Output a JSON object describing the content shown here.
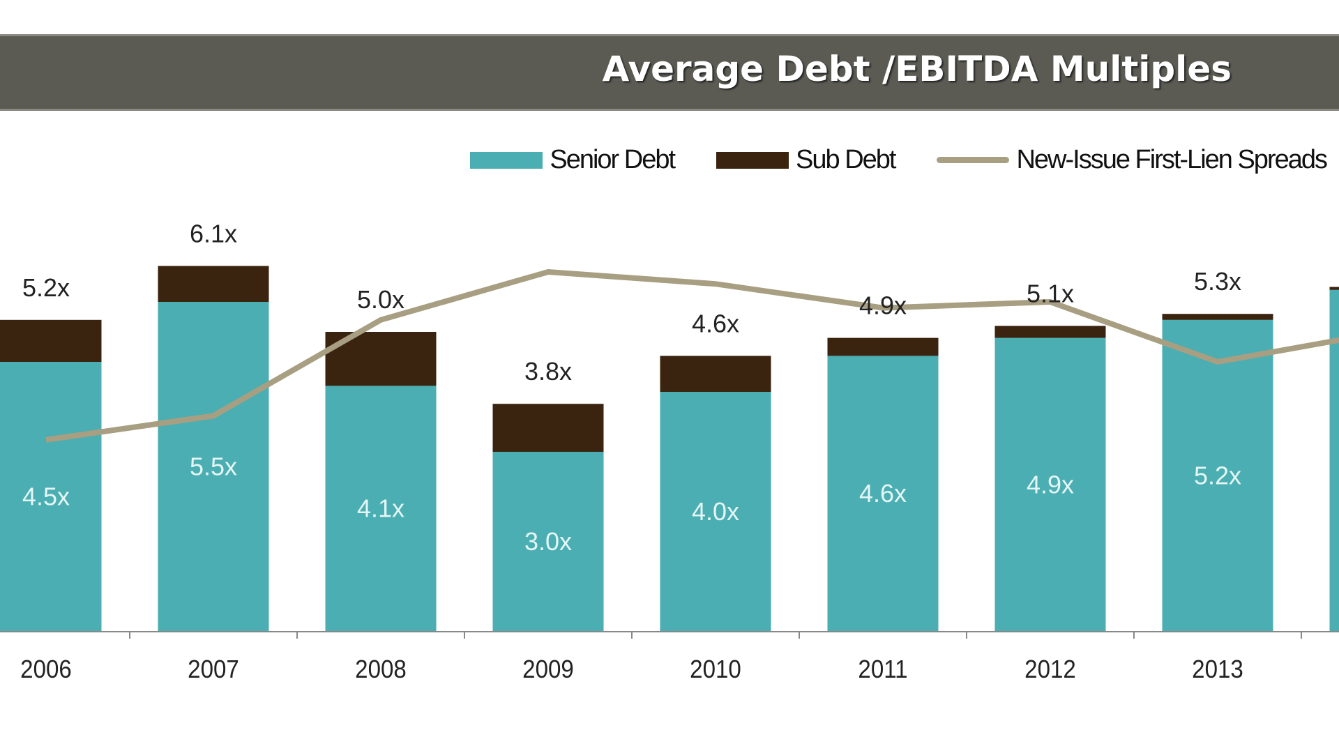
{
  "chart_data": {
    "type": "bar",
    "stacked": true,
    "title": "Average Debt /EBITDA Multiples",
    "xlabel": "",
    "ylabel": "",
    "grid": false,
    "legend_position": "top-right",
    "categories": [
      "2006",
      "2007",
      "2008",
      "2009",
      "2010",
      "2011",
      "2012",
      "2013",
      ""
    ],
    "series": [
      {
        "name": "Senior Debt",
        "type": "bar",
        "color": "#4aaeb2",
        "values": [
          4.5,
          5.5,
          4.1,
          3.0,
          4.0,
          4.6,
          4.9,
          5.2,
          5.7
        ],
        "labels": [
          "4.5x",
          "5.5x",
          "4.1x",
          "3.0x",
          "4.0x",
          "4.6x",
          "4.9x",
          "5.2x",
          ""
        ]
      },
      {
        "name": "Sub Debt",
        "type": "bar",
        "color": "#3a2410",
        "values": [
          0.7,
          0.6,
          0.9,
          0.8,
          0.6,
          0.3,
          0.2,
          0.1,
          0.05
        ]
      },
      {
        "name": "New-Issue First-Lien Spreads",
        "type": "line",
        "color": "#a89f82",
        "values": [
          3.2,
          3.6,
          5.2,
          6.0,
          5.8,
          5.4,
          5.5,
          4.5,
          5.0
        ]
      }
    ],
    "total_labels": [
      "5.2x",
      "6.1x",
      "5.0x",
      "3.8x",
      "4.6x",
      "4.9x",
      "5.1x",
      "5.3x",
      ""
    ],
    "ylim": [
      0,
      7
    ]
  }
}
